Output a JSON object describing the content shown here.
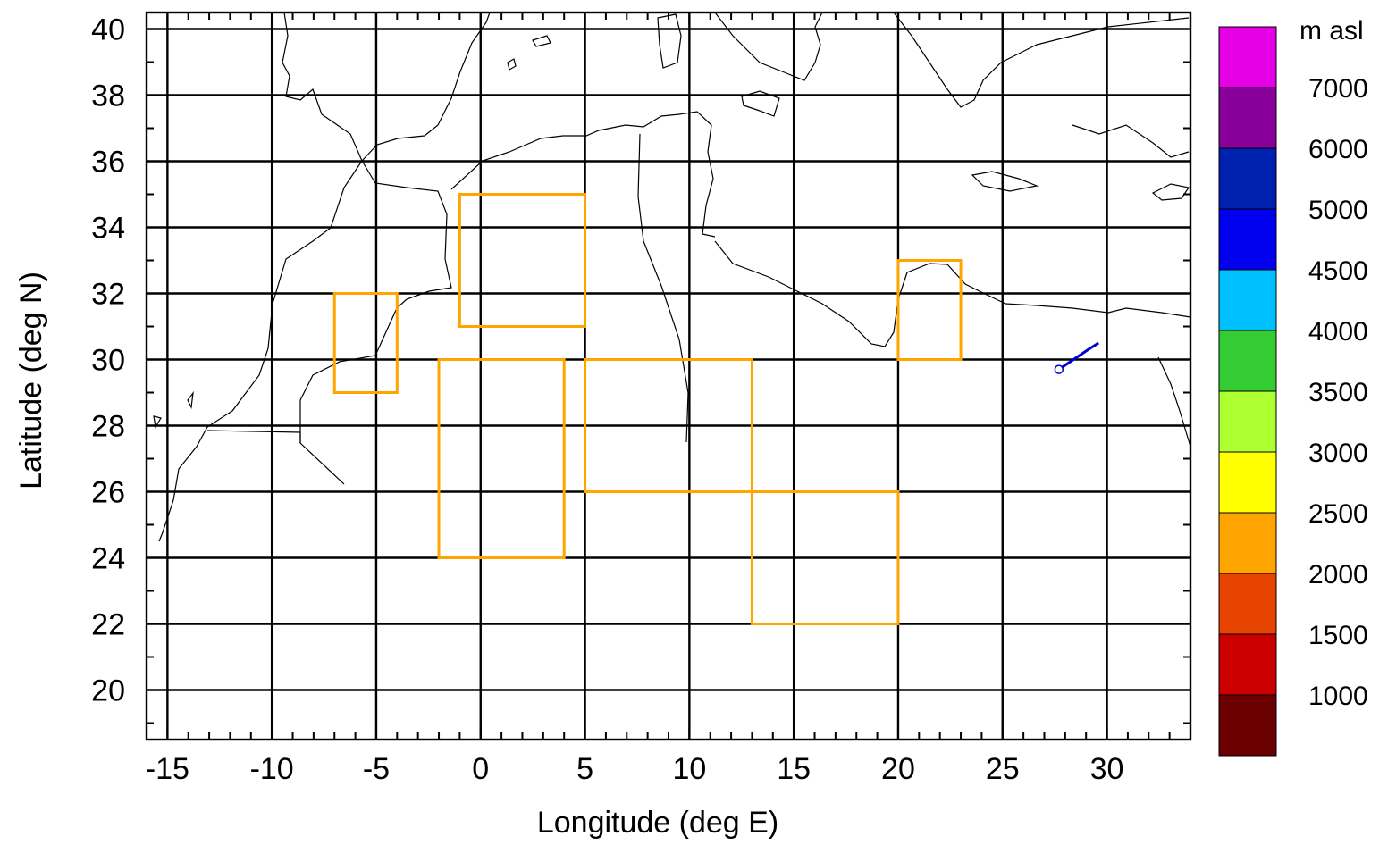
{
  "map": {
    "xlabel": "Longitude (deg E)",
    "ylabel": "Latitude (deg N)",
    "lon_range": [
      -16,
      34
    ],
    "lat_range": [
      18.5,
      40.5
    ],
    "x_ticks": [
      "-15",
      "-10",
      "-5",
      "0",
      "5",
      "10",
      "15",
      "20",
      "25",
      "30"
    ],
    "y_ticks": [
      "20",
      "22",
      "24",
      "26",
      "28",
      "30",
      "32",
      "34",
      "36",
      "38",
      "40"
    ],
    "grid": true,
    "box_color": "#FFA500",
    "regions": [
      {
        "lon": [
          -7,
          -4
        ],
        "lat": [
          29,
          32
        ]
      },
      {
        "lon": [
          -1,
          5
        ],
        "lat": [
          31,
          35
        ]
      },
      {
        "lon": [
          -2,
          4
        ],
        "lat": [
          24,
          30
        ]
      },
      {
        "lon": [
          5,
          13
        ],
        "lat": [
          26,
          30
        ]
      },
      {
        "lon": [
          13,
          20
        ],
        "lat": [
          22,
          26
        ]
      },
      {
        "lon": [
          20,
          23
        ],
        "lat": [
          30,
          33
        ]
      }
    ],
    "trajectory": {
      "color": "#0000CC",
      "start_marker": "open-circle",
      "points": [
        [
          27.7,
          29.7
        ],
        [
          29.1,
          30.3
        ],
        [
          29.6,
          30.5
        ]
      ]
    }
  },
  "colorbar": {
    "title": "m asl",
    "labels": [
      "7000",
      "6000",
      "5000",
      "4500",
      "4000",
      "3500",
      "3000",
      "2500",
      "2000",
      "1500",
      "1000"
    ],
    "colors": [
      "#E600E6",
      "#880099",
      "#0020B0",
      "#0000EE",
      "#00BFFF",
      "#33CC33",
      "#ADFF2F",
      "#FFFF00",
      "#FFA500",
      "#E64400",
      "#CC0000",
      "#6B0000"
    ]
  }
}
